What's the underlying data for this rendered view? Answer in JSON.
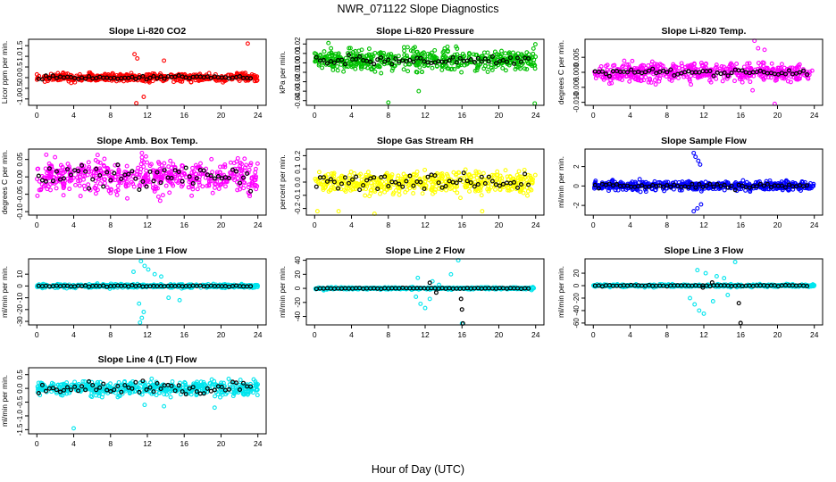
{
  "figure": {
    "title": "NWR_071122  Slope Diagnostics",
    "xlabel": "Hour of Day (UTC)"
  },
  "chart_data": [
    {
      "type": "scatter",
      "title": "Slope Li-820 CO2",
      "ylabel": "Licor ppm per min.",
      "color": "#ff0000",
      "ylim": [
        -1.3,
        1.8
      ],
      "yticks": [
        -1.0,
        -0.5,
        0.0,
        0.5,
        1.0,
        1.5
      ],
      "ytick_labels": [
        "-1.0",
        "-0.5",
        "0.0",
        "0.5",
        "1.0",
        "1.5"
      ],
      "xlim": [
        -0.9,
        24.9
      ],
      "xticks": [
        0,
        4,
        8,
        12,
        16,
        20,
        24
      ],
      "spread": 0.18,
      "outliers": [
        {
          "x": 10.6,
          "y": 1.1
        },
        {
          "x": 10.9,
          "y": 0.9
        },
        {
          "x": 11.6,
          "y": -0.9
        },
        {
          "x": 22.9,
          "y": 1.6
        },
        {
          "x": 10.8,
          "y": -1.2
        },
        {
          "x": 13.8,
          "y": 0.8
        }
      ],
      "black_amp": 0.08,
      "seed": 11
    },
    {
      "type": "scatter",
      "title": "Slope Li-820 Pressure",
      "ylabel": "kPa per min.",
      "color": "#00c000",
      "ylim": [
        -0.045,
        0.025
      ],
      "yticks": [
        -0.04,
        -0.03,
        -0.02,
        -0.01,
        0.0,
        0.01,
        0.02
      ],
      "ytick_labels": [
        "-0.04",
        "-0.03",
        "-0.02",
        "-0.01",
        "0.00",
        "0.01",
        "0.02"
      ],
      "xlim": [
        -0.9,
        24.9
      ],
      "xticks": [
        0,
        4,
        8,
        12,
        16,
        20,
        24
      ],
      "spread": 0.011,
      "center": 0.003,
      "outliers": [
        {
          "x": 8.0,
          "y": -0.042
        },
        {
          "x": 23.9,
          "y": -0.043
        },
        {
          "x": 1.5,
          "y": 0.021
        },
        {
          "x": 11.3,
          "y": -0.03
        }
      ],
      "black_amp": 0.004,
      "seed": 23
    },
    {
      "type": "scatter",
      "title": "Slope Li-820 Temp.",
      "ylabel": "degrees C per min.",
      "color": "#ff00ff",
      "ylim": [
        -0.011,
        0.011
      ],
      "yticks": [
        -0.01,
        -0.005,
        0.0,
        0.005
      ],
      "ytick_labels": [
        "-0.010",
        "-0.005",
        "0.000",
        "0.005"
      ],
      "xlim": [
        -0.9,
        24.9
      ],
      "xticks": [
        0,
        4,
        8,
        12,
        16,
        20,
        24
      ],
      "spread": 0.003,
      "outliers": [
        {
          "x": 17.5,
          "y": 0.0105
        },
        {
          "x": 19.7,
          "y": -0.0105
        },
        {
          "x": 17.9,
          "y": 0.008
        },
        {
          "x": 18.6,
          "y": 0.0075
        },
        {
          "x": 17.3,
          "y": -0.006
        }
      ],
      "black_amp": 0.001,
      "seed": 37
    },
    {
      "type": "scatter",
      "title": "Slope Amb. Box Temp.",
      "ylabel": "degrees C per min.",
      "color": "#ff00ff",
      "ylim": [
        -0.11,
        0.08
      ],
      "yticks": [
        -0.1,
        -0.05,
        0.0,
        0.05
      ],
      "ytick_labels": [
        "-0.10",
        "-0.05",
        "0.00",
        "0.05"
      ],
      "xlim": [
        -0.9,
        24.9
      ],
      "xticks": [
        0,
        4,
        8,
        12,
        16,
        20,
        24
      ],
      "spread": 0.045,
      "outliers": [],
      "black_amp": 0.035,
      "seed": 41
    },
    {
      "type": "scatter",
      "title": "Slope Gas Stream RH",
      "ylabel": "percent per min.",
      "color": "#ffff00",
      "ylim": [
        -0.25,
        0.25
      ],
      "yticks": [
        -0.2,
        -0.1,
        0.0,
        0.1,
        0.2
      ],
      "ytick_labels": [
        "-0.2",
        "-0.1",
        "0.0",
        "0.1",
        "0.2"
      ],
      "xlim": [
        -0.9,
        24.9
      ],
      "xticks": [
        0,
        4,
        8,
        12,
        16,
        20,
        24
      ],
      "spread": 0.08,
      "outliers": [
        {
          "x": 0.3,
          "y": -0.22
        },
        {
          "x": 2.6,
          "y": -0.22
        },
        {
          "x": 6.5,
          "y": -0.24
        },
        {
          "x": 18.2,
          "y": -0.22
        }
      ],
      "black_amp": 0.06,
      "seed": 53
    },
    {
      "type": "scatter",
      "title": "Slope Sample Flow",
      "ylabel": "ml/min per min.",
      "color": "#0000ff",
      "ylim": [
        -3.0,
        3.8
      ],
      "yticks": [
        -2,
        0,
        2
      ],
      "ytick_labels": [
        "-2",
        "0",
        "2"
      ],
      "xlim": [
        -0.9,
        24.9
      ],
      "xticks": [
        0,
        4,
        8,
        12,
        16,
        20,
        24
      ],
      "spread": 0.45,
      "outliers": [
        {
          "x": 10.9,
          "y": 3.4
        },
        {
          "x": 11.1,
          "y": 3.0
        },
        {
          "x": 11.4,
          "y": 2.6
        },
        {
          "x": 11.6,
          "y": 2.2
        },
        {
          "x": 10.9,
          "y": -2.6
        },
        {
          "x": 11.3,
          "y": -2.3
        },
        {
          "x": 11.7,
          "y": -1.9
        }
      ],
      "black_amp": 0.25,
      "seed": 61
    },
    {
      "type": "scatter",
      "title": "Slope Line 1 Flow",
      "ylabel": "ml/min per min.",
      "color": "#00e5ee",
      "ylim": [
        -33,
        23
      ],
      "yticks": [
        -30,
        -20,
        -10,
        0,
        10
      ],
      "ytick_labels": [
        "-30",
        "-20",
        "-10",
        "0",
        "10"
      ],
      "xlim": [
        -0.9,
        24.9
      ],
      "xticks": [
        0,
        4,
        8,
        12,
        16,
        20,
        24
      ],
      "spread": 1.5,
      "outliers": [
        {
          "x": 11.2,
          "y": -31
        },
        {
          "x": 11.4,
          "y": -27
        },
        {
          "x": 11.6,
          "y": -22
        },
        {
          "x": 11.1,
          "y": -15
        },
        {
          "x": 10.5,
          "y": 12
        },
        {
          "x": 11.3,
          "y": 21
        },
        {
          "x": 11.7,
          "y": 17
        },
        {
          "x": 12.1,
          "y": 14
        },
        {
          "x": 12.8,
          "y": 10
        },
        {
          "x": 13.5,
          "y": 8
        },
        {
          "x": 14.3,
          "y": -10
        },
        {
          "x": 15.5,
          "y": -12
        }
      ],
      "black_amp": 0.5,
      "seed": 71
    },
    {
      "type": "scatter",
      "title": "Slope Line 2 Flow",
      "ylabel": "ml/min per min.",
      "color": "#00e5ee",
      "ylim": [
        -52,
        42
      ],
      "yticks": [
        -40,
        -20,
        0,
        20,
        40
      ],
      "ytick_labels": [
        "-40",
        "-20",
        "0",
        "20",
        "40"
      ],
      "xlim": [
        -0.9,
        24.9
      ],
      "xticks": [
        0,
        4,
        8,
        12,
        16,
        20,
        24
      ],
      "spread": 1.5,
      "outliers": [
        {
          "x": 11.0,
          "y": -12
        },
        {
          "x": 11.5,
          "y": -22
        },
        {
          "x": 12.0,
          "y": -28
        },
        {
          "x": 12.5,
          "y": -15
        },
        {
          "x": 11.2,
          "y": 15
        },
        {
          "x": 12.8,
          "y": 10
        },
        {
          "x": 13.5,
          "y": 5
        },
        {
          "x": 15.6,
          "y": 40
        },
        {
          "x": 16.0,
          "y": -50
        },
        {
          "x": 14.8,
          "y": 20
        }
      ],
      "black_amp": 0.6,
      "black_extra": [
        {
          "x": 15.9,
          "y": -15
        },
        {
          "x": 16.0,
          "y": -30
        },
        {
          "x": 16.1,
          "y": -50
        },
        {
          "x": 12.5,
          "y": 8
        },
        {
          "x": 13.2,
          "y": -6
        }
      ],
      "seed": 83
    },
    {
      "type": "scatter",
      "title": "Slope Line 3 Flow",
      "ylabel": "ml/min per min.",
      "color": "#00e5ee",
      "ylim": [
        -63,
        43
      ],
      "yticks": [
        -60,
        -40,
        -20,
        0,
        20
      ],
      "ytick_labels": [
        "-60",
        "-40",
        "-20",
        "0",
        "20"
      ],
      "xlim": [
        -0.9,
        24.9
      ],
      "xticks": [
        0,
        4,
        8,
        12,
        16,
        20,
        24
      ],
      "spread": 2.0,
      "outliers": [
        {
          "x": 10.5,
          "y": -20
        },
        {
          "x": 11.0,
          "y": -30
        },
        {
          "x": 11.5,
          "y": -40
        },
        {
          "x": 12.0,
          "y": -45
        },
        {
          "x": 11.3,
          "y": 25
        },
        {
          "x": 12.2,
          "y": 20
        },
        {
          "x": 13.4,
          "y": 15
        },
        {
          "x": 14.2,
          "y": 12
        },
        {
          "x": 15.4,
          "y": 38
        },
        {
          "x": 14.6,
          "y": -15
        },
        {
          "x": 13.0,
          "y": -25
        }
      ],
      "black_amp": 0.8,
      "black_extra": [
        {
          "x": 15.8,
          "y": -28
        },
        {
          "x": 16.0,
          "y": -60
        },
        {
          "x": 12.9,
          "y": 5
        },
        {
          "x": 11.9,
          "y": -3
        }
      ],
      "seed": 97
    },
    {
      "type": "scatter",
      "title": "Slope Line 4 (LT) Flow",
      "ylabel": "ml/min per min.",
      "color": "#00e5ee",
      "ylim": [
        -1.65,
        0.75
      ],
      "yticks": [
        -1.5,
        -1.0,
        -0.5,
        0.0,
        0.5
      ],
      "ytick_labels": [
        "-1.5",
        "-1.0",
        "-0.5",
        "0.0",
        "0.5"
      ],
      "xlim": [
        -0.9,
        24.9
      ],
      "xticks": [
        0,
        4,
        8,
        12,
        16,
        20,
        24
      ],
      "spread": 0.25,
      "outliers": [
        {
          "x": 4.0,
          "y": -1.45
        },
        {
          "x": 13.8,
          "y": -0.65
        },
        {
          "x": 19.3,
          "y": -0.7
        },
        {
          "x": 11.7,
          "y": -0.6
        }
      ],
      "black_amp": 0.2,
      "seed": 103
    }
  ]
}
